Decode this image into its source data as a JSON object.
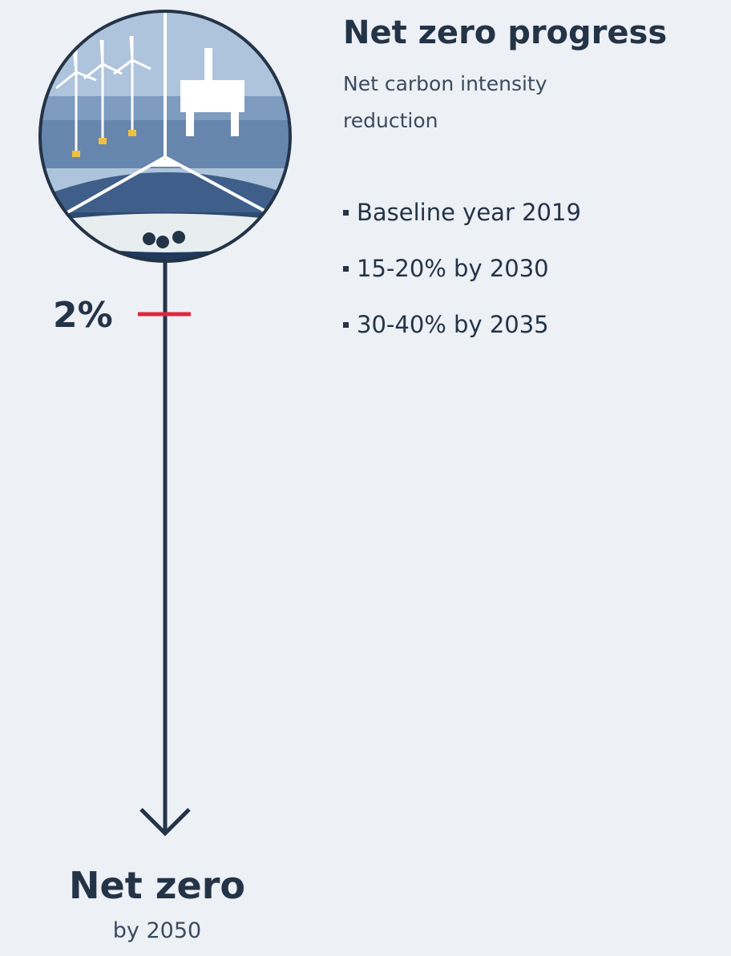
{
  "title": "Net zero progress",
  "subtitle": "Net carbon intensity reduction",
  "bullets": [
    "Baseline year 2019",
    "15-20% by 2030",
    "30-40% by 2035"
  ],
  "progress": {
    "label": "2%"
  },
  "goal": {
    "title": "Net zero",
    "subtitle": "by 2050"
  }
}
